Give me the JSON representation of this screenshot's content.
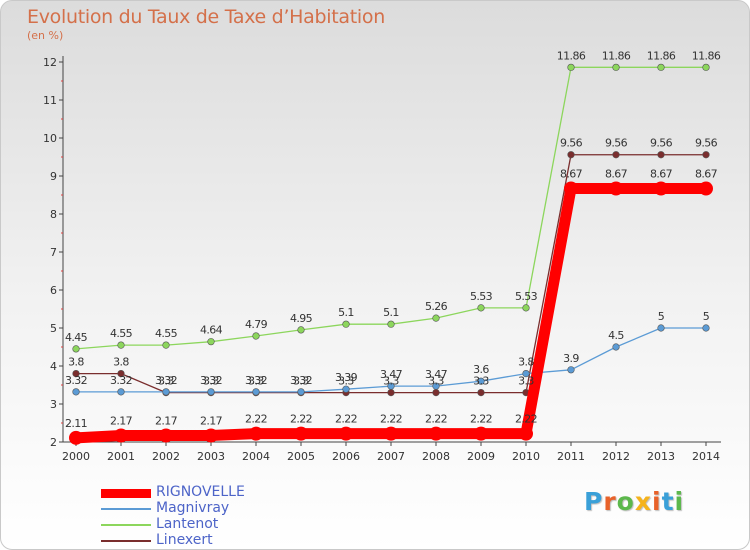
{
  "chart_data": {
    "type": "line",
    "title": "Evolution du Taux de Taxe d’Habitation",
    "unit_label": "(en %)",
    "x": [
      "2000",
      "2001",
      "2002",
      "2003",
      "2004",
      "2005",
      "2006",
      "2007",
      "2008",
      "2009",
      "2010",
      "2011",
      "2012",
      "2013",
      "2014"
    ],
    "y_ticks": [
      "2",
      "3",
      "4",
      "5",
      "6",
      "7",
      "8",
      "9",
      "10",
      "11",
      "12"
    ],
    "ylim": [
      2,
      12
    ],
    "grid": false,
    "legend_position": "bottom-left",
    "series": [
      {
        "name": "RIGNOVELLE",
        "color": "#ff0000",
        "values": [
          2.11,
          2.17,
          2.17,
          2.17,
          2.22,
          2.22,
          2.22,
          2.22,
          2.22,
          2.22,
          2.22,
          8.67,
          8.67,
          8.67,
          8.67
        ],
        "labels": [
          "2.11",
          "2.17",
          "2.17",
          "2.17",
          "2.22",
          "2.22",
          "2.22",
          "2.22",
          "2.22",
          "2.22",
          "2.22",
          "8.67",
          "8.67",
          "8.67",
          "8.67"
        ]
      },
      {
        "name": "Magnivray",
        "color": "#5b9bd5",
        "values": [
          3.32,
          3.32,
          3.32,
          3.32,
          3.32,
          3.32,
          3.39,
          3.47,
          3.47,
          3.6,
          3.8,
          3.9,
          4.5,
          5,
          5
        ],
        "labels": [
          "3.32",
          "3.32",
          "3.32",
          "3.32",
          "3.32",
          "3.32",
          "3.39",
          "3.47",
          "3.47",
          "3.6",
          "3.8",
          "3.9",
          "4.5",
          "5",
          "5"
        ]
      },
      {
        "name": "Lantenot",
        "color": "#8cd65c",
        "values": [
          4.45,
          4.55,
          4.55,
          4.64,
          4.79,
          4.95,
          5.1,
          5.1,
          5.26,
          5.53,
          5.53,
          11.86,
          11.86,
          11.86,
          11.86
        ],
        "labels": [
          "4.45",
          "4.55",
          "4.55",
          "4.64",
          "4.79",
          "4.95",
          "5.1",
          "5.1",
          "5.26",
          "5.53",
          "5.53",
          "11.86",
          "11.86",
          "11.86",
          "11.86"
        ]
      },
      {
        "name": "Linexert",
        "color": "#7a2e2e",
        "values": [
          3.8,
          3.8,
          3.3,
          3.3,
          3.3,
          3.3,
          3.3,
          3.3,
          3.3,
          3.3,
          3.3,
          9.56,
          9.56,
          9.56,
          9.56
        ],
        "labels": [
          "3.8",
          "3.8",
          "3.3",
          "3.3",
          "3.3",
          "3.3",
          "3.3",
          "3.3",
          "3.3",
          "3.3",
          "3.3",
          "9.56",
          "9.56",
          "9.56",
          "9.56"
        ]
      }
    ]
  },
  "logo": {
    "text": "Proxiti"
  }
}
